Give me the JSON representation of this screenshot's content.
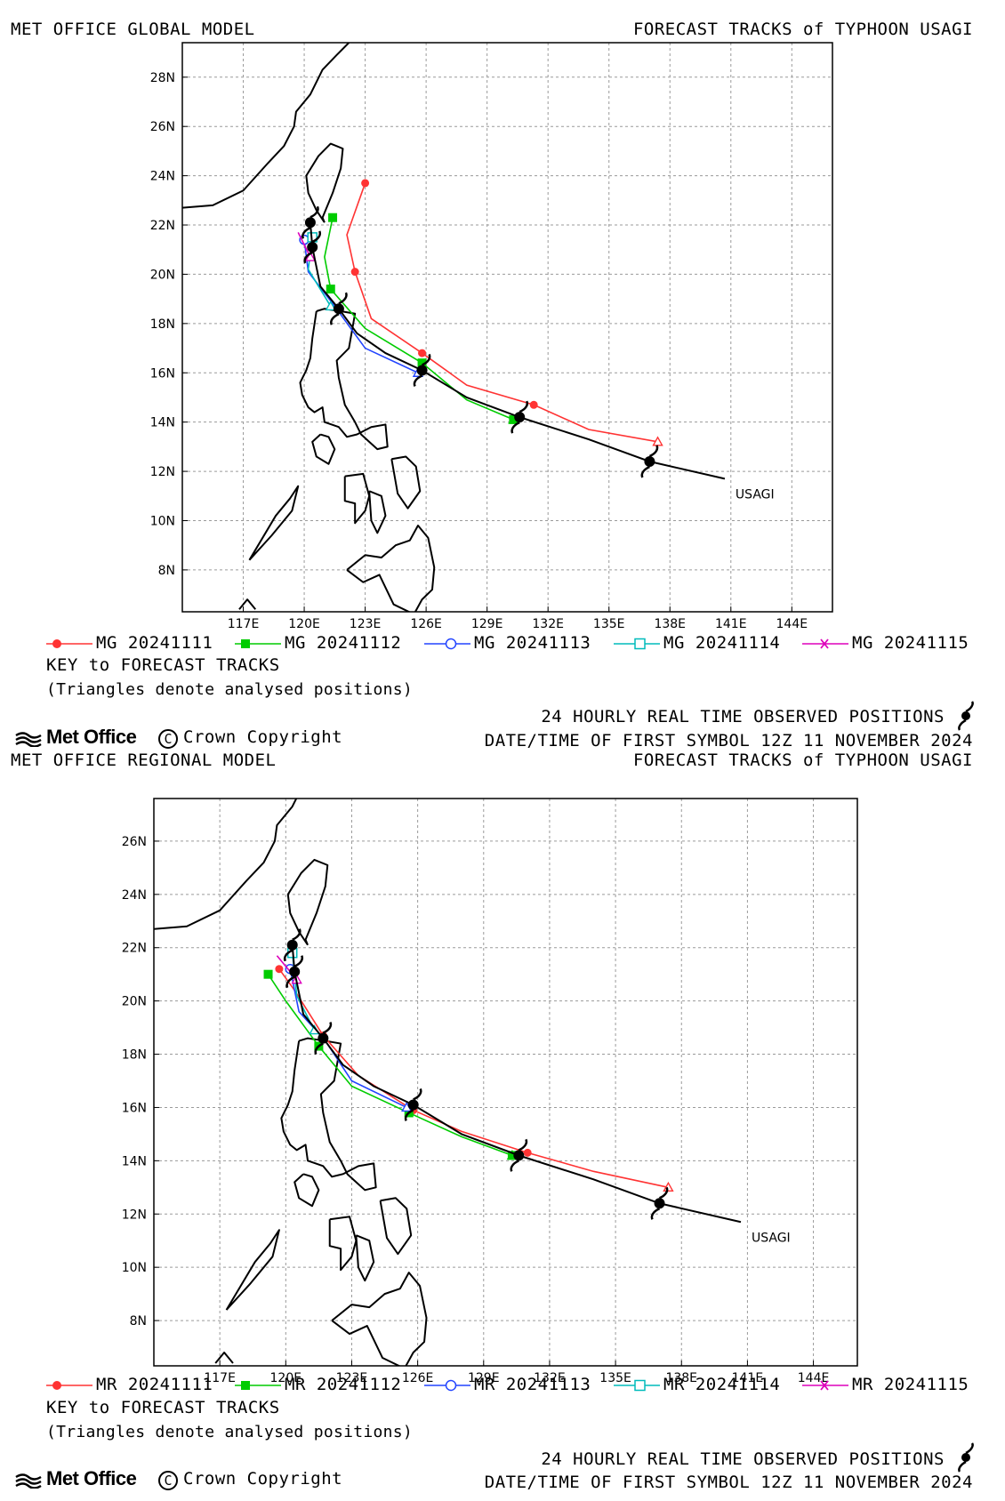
{
  "storm_label": "USAGI",
  "colors": {
    "track1": "#ff3333",
    "track2": "#00cc00",
    "track3": "#2244ff",
    "track4": "#00bbbb",
    "track5": "#dd00bb",
    "observed": "#000000"
  },
  "panels": [
    {
      "id": "global",
      "title_left": "MET OFFICE GLOBAL MODEL",
      "title_right": "FORECAST TRACKS of TYPHOON USAGI",
      "lon_range": [
        114,
        146
      ],
      "lat_range": [
        6.3,
        29.4
      ],
      "lon_ticks": [
        "117E",
        "120E",
        "123E",
        "126E",
        "129E",
        "132E",
        "135E",
        "138E",
        "141E",
        "144E"
      ],
      "lat_ticks": [
        "8N",
        "10N",
        "12N",
        "14N",
        "16N",
        "18N",
        "20N",
        "22N",
        "24N",
        "26N",
        "28N"
      ],
      "legend": [
        "MG 20241111",
        "MG 20241112",
        "MG 20241113",
        "MG 20241114",
        "MG 20241115"
      ],
      "key_title": "KEY to FORECAST TRACKS",
      "key_note": "(Triangles denote analysed positions)",
      "observed_label": "24 HOURLY REAL TIME OBSERVED POSITIONS",
      "first_symbol_label": "DATE/TIME OF FIRST SYMBOL 12Z 11 NOVEMBER 2024",
      "brand": "Met Office",
      "copyright": "Crown Copyright",
      "observed_track": [
        [
          140.7,
          11.7
        ],
        [
          137.0,
          12.4
        ],
        [
          134.0,
          13.3
        ],
        [
          130.6,
          14.2
        ],
        [
          128.0,
          15.0
        ],
        [
          125.8,
          16.1
        ],
        [
          124.0,
          16.8
        ],
        [
          122.6,
          17.6
        ],
        [
          121.7,
          18.6
        ],
        [
          120.8,
          19.5
        ],
        [
          120.4,
          21.1
        ],
        [
          120.3,
          22.1
        ]
      ],
      "observed_symbols": [
        [
          137.0,
          12.4
        ],
        [
          130.6,
          14.2
        ],
        [
          125.8,
          16.1
        ],
        [
          121.7,
          18.6
        ],
        [
          120.4,
          21.1
        ],
        [
          120.3,
          22.1
        ]
      ],
      "forecasts": [
        {
          "track": [
            [
              137.4,
              13.2
            ],
            [
              134.0,
              13.7
            ],
            [
              131.3,
              14.7
            ],
            [
              128.0,
              15.5
            ],
            [
              125.8,
              16.8
            ],
            [
              123.3,
              18.2
            ],
            [
              122.5,
              20.1
            ],
            [
              122.1,
              21.6
            ],
            [
              123.0,
              23.7
            ]
          ],
          "markers": [
            [
              131.3,
              14.7
            ],
            [
              125.8,
              16.8
            ],
            [
              122.5,
              20.1
            ],
            [
              123.0,
              23.7
            ]
          ]
        },
        {
          "track": [
            [
              130.3,
              14.1
            ],
            [
              128.0,
              14.9
            ],
            [
              125.8,
              16.4
            ],
            [
              123.0,
              17.8
            ],
            [
              121.3,
              19.4
            ],
            [
              121.0,
              20.7
            ],
            [
              121.4,
              22.3
            ]
          ],
          "markers": [
            [
              130.3,
              14.1
            ],
            [
              125.8,
              16.4
            ],
            [
              121.3,
              19.4
            ],
            [
              121.4,
              22.3
            ]
          ]
        },
        {
          "track": [
            [
              125.6,
              16.0
            ],
            [
              123.0,
              17.0
            ],
            [
              121.5,
              18.7
            ],
            [
              120.2,
              20.1
            ],
            [
              120.0,
              21.4
            ]
          ],
          "markers": [
            [
              120.0,
              21.4
            ]
          ]
        },
        {
          "track": [
            [
              121.3,
              18.7
            ],
            [
              120.2,
              20.2
            ],
            [
              120.4,
              21.5
            ]
          ],
          "markers": [
            [
              120.4,
              21.5
            ]
          ]
        },
        {
          "track": [
            [
              120.3,
              20.7
            ],
            [
              119.7,
              21.7
            ]
          ],
          "markers": [
            [
              119.7,
              21.7
            ]
          ]
        }
      ]
    },
    {
      "id": "regional",
      "title_left": "MET OFFICE REGIONAL MODEL",
      "title_right": "FORECAST TRACKS of TYPHOON USAGI",
      "lon_range": [
        114,
        146
      ],
      "lat_range": [
        6.3,
        27.6
      ],
      "lon_ticks": [
        "117E",
        "120E",
        "123E",
        "126E",
        "129E",
        "132E",
        "135E",
        "138E",
        "141E",
        "144E"
      ],
      "lat_ticks": [
        "8N",
        "10N",
        "12N",
        "14N",
        "16N",
        "18N",
        "20N",
        "22N",
        "24N",
        "26N"
      ],
      "legend": [
        "MR 20241111",
        "MR 20241112",
        "MR 20241113",
        "MR 20241114",
        "MR 20241115"
      ],
      "key_title": "KEY to FORECAST TRACKS",
      "key_note": "(Triangles denote analysed positions)",
      "observed_label": "24 HOURLY REAL TIME OBSERVED POSITIONS",
      "first_symbol_label": "DATE/TIME OF FIRST SYMBOL 12Z 11 NOVEMBER 2024",
      "brand": "Met Office",
      "copyright": "Crown Copyright",
      "observed_track": [
        [
          140.7,
          11.7
        ],
        [
          137.0,
          12.4
        ],
        [
          134.0,
          13.3
        ],
        [
          130.6,
          14.2
        ],
        [
          128.0,
          15.0
        ],
        [
          125.8,
          16.1
        ],
        [
          124.0,
          16.8
        ],
        [
          122.6,
          17.6
        ],
        [
          121.7,
          18.6
        ],
        [
          120.8,
          19.5
        ],
        [
          120.4,
          21.1
        ],
        [
          120.3,
          22.1
        ]
      ],
      "observed_symbols": [
        [
          137.0,
          12.4
        ],
        [
          130.6,
          14.2
        ],
        [
          125.8,
          16.1
        ],
        [
          121.7,
          18.6
        ],
        [
          120.4,
          21.1
        ],
        [
          120.3,
          22.1
        ]
      ],
      "forecasts": [
        {
          "track": [
            [
              137.4,
              13.0
            ],
            [
              134.0,
              13.6
            ],
            [
              131.0,
              14.3
            ],
            [
              128.0,
              15.1
            ],
            [
              125.8,
              15.9
            ],
            [
              123.3,
              17.2
            ],
            [
              121.7,
              18.7
            ],
            [
              120.4,
              20.4
            ],
            [
              119.7,
              21.2
            ]
          ],
          "markers": [
            [
              131.0,
              14.3
            ],
            [
              125.8,
              15.9
            ],
            [
              121.7,
              18.7
            ],
            [
              119.7,
              21.2
            ]
          ]
        },
        {
          "track": [
            [
              130.3,
              14.2
            ],
            [
              128.0,
              14.9
            ],
            [
              125.6,
              15.8
            ],
            [
              123.0,
              16.8
            ],
            [
              121.5,
              18.3
            ],
            [
              120.0,
              20.0
            ],
            [
              119.2,
              21.0
            ]
          ],
          "markers": [
            [
              130.3,
              14.2
            ],
            [
              125.6,
              15.8
            ],
            [
              121.5,
              18.3
            ],
            [
              119.2,
              21.0
            ]
          ]
        },
        {
          "track": [
            [
              125.5,
              16.0
            ],
            [
              123.0,
              17.0
            ],
            [
              121.8,
              18.5
            ],
            [
              120.6,
              19.6
            ],
            [
              120.2,
              21.2
            ]
          ],
          "markers": [
            [
              120.2,
              21.2
            ]
          ]
        },
        {
          "track": [
            [
              121.3,
              18.9
            ],
            [
              120.5,
              20.2
            ],
            [
              120.3,
              21.8
            ]
          ],
          "markers": [
            [
              120.3,
              21.8
            ]
          ]
        },
        {
          "track": [
            [
              120.5,
              20.8
            ],
            [
              119.6,
              21.7
            ]
          ],
          "markers": [
            [
              119.6,
              21.7
            ]
          ]
        }
      ]
    }
  ]
}
